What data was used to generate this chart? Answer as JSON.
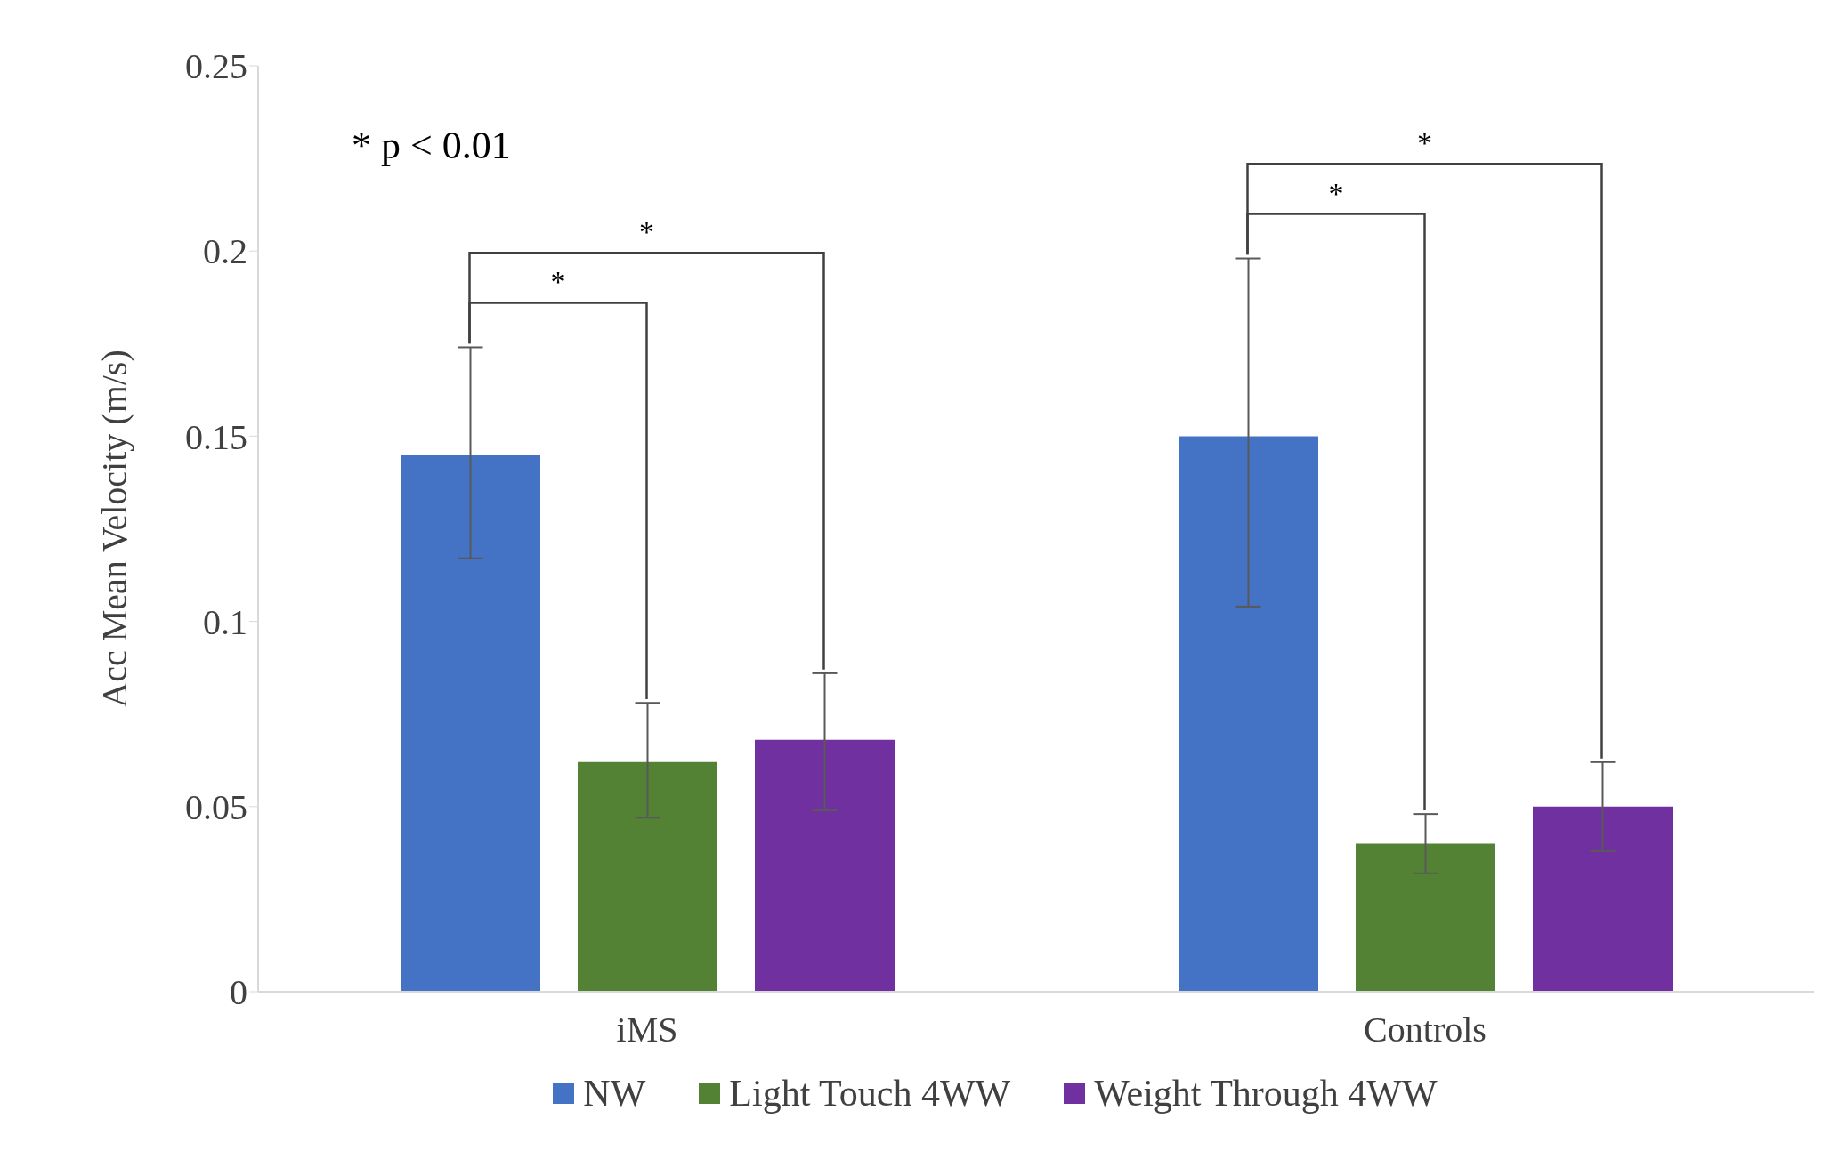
{
  "chart_data": {
    "type": "bar",
    "ylabel": "Acc Mean Velocity (m/s)",
    "categories": [
      "iMS",
      "Controls"
    ],
    "series": [
      {
        "name": "NW",
        "color": "#4472c4",
        "values": [
          0.145,
          0.15
        ],
        "errors": [
          [
            0.117,
            0.174
          ],
          [
            0.104,
            0.198
          ]
        ]
      },
      {
        "name": "Light Touch 4WW",
        "color": "#548235",
        "values": [
          0.062,
          0.04
        ],
        "errors": [
          [
            0.047,
            0.078
          ],
          [
            0.032,
            0.048
          ]
        ]
      },
      {
        "name": "Weight Through 4WW",
        "color": "#7030a0",
        "values": [
          0.068,
          0.05
        ],
        "errors": [
          [
            0.049,
            0.086
          ],
          [
            0.038,
            0.062
          ]
        ]
      }
    ],
    "ylim": [
      0,
      0.25
    ],
    "yticks": [
      0,
      0.05,
      0.1,
      0.15,
      0.2,
      0.25
    ],
    "grid": false,
    "legend": "bottom",
    "annotations": [
      "* p < 0.01",
      "*",
      "*",
      "*",
      "*"
    ]
  }
}
